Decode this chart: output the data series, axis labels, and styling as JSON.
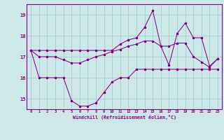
{
  "xlabel": "Windchill (Refroidissement éolien,°C)",
  "hours": [
    0,
    1,
    2,
    3,
    4,
    5,
    6,
    7,
    8,
    9,
    10,
    11,
    12,
    13,
    14,
    15,
    16,
    17,
    18,
    19,
    20,
    21,
    22,
    23
  ],
  "line_low": [
    17.3,
    16.0,
    16.0,
    16.0,
    16.0,
    14.9,
    14.65,
    14.65,
    14.8,
    15.3,
    15.8,
    16.0,
    16.0,
    16.4,
    16.4,
    16.4,
    16.4,
    16.4,
    16.4,
    16.4,
    16.4,
    16.4,
    16.4,
    16.4
  ],
  "line_mid": [
    17.3,
    17.0,
    17.0,
    17.0,
    16.85,
    16.7,
    16.7,
    16.85,
    17.0,
    17.1,
    17.25,
    17.35,
    17.5,
    17.6,
    17.75,
    17.75,
    17.5,
    17.5,
    17.65,
    17.65,
    17.0,
    16.75,
    16.5,
    16.9
  ],
  "line_peak": [
    17.3,
    17.3,
    17.3,
    17.3,
    17.3,
    17.3,
    17.3,
    17.3,
    17.3,
    17.3,
    17.3,
    17.6,
    17.8,
    17.9,
    18.4,
    19.2,
    17.5,
    16.6,
    18.1,
    18.6,
    17.9,
    17.9,
    16.55,
    16.9
  ],
  "bg_color": "#cce8e8",
  "grid_color": "#aacccc",
  "line_color": "#880088",
  "ylim": [
    14.5,
    19.5
  ],
  "yticks": [
    15,
    16,
    17,
    18,
    19
  ],
  "xticks": [
    0,
    1,
    2,
    3,
    4,
    5,
    6,
    7,
    8,
    9,
    10,
    11,
    12,
    13,
    14,
    15,
    16,
    17,
    18,
    19,
    20,
    21,
    22,
    23
  ]
}
